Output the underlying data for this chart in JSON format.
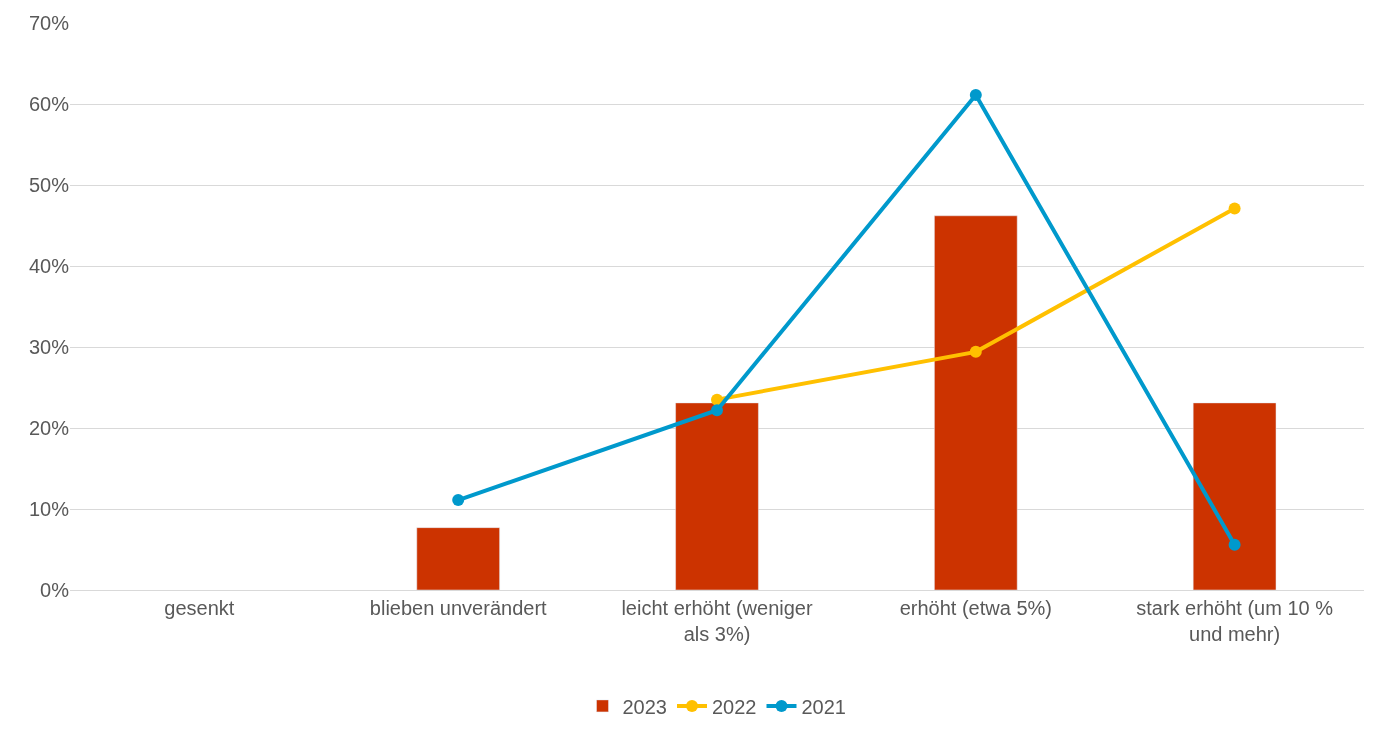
{
  "chart_data": {
    "type": "bar",
    "categories": [
      "gesenkt",
      "blieben unverändert",
      "leicht erhöht (weniger als 3%)",
      "erhöht (etwa 5%)",
      "stark erhöht (um 10 % und mehr)"
    ],
    "series": [
      {
        "name": "2023",
        "color": "#cc3300",
        "values": [
          null,
          7.7,
          23.1,
          46.2,
          23.1
        ]
      },
      {
        "name": "2022",
        "type": "line",
        "color": "#ffc000",
        "values": [
          null,
          null,
          23.5,
          29.4,
          47.1
        ]
      },
      {
        "name": "2021",
        "type": "line",
        "color": "#0099cc",
        "values": [
          null,
          11.1,
          22.2,
          61.1,
          5.6
        ]
      }
    ],
    "ylim": [
      0,
      70
    ],
    "yticks": [
      {
        "value": 0,
        "label": "0%"
      },
      {
        "value": 10,
        "label": "10%"
      },
      {
        "value": 20,
        "label": "20%"
      },
      {
        "value": 30,
        "label": "30%"
      },
      {
        "value": 40,
        "label": "40%"
      },
      {
        "value": 50,
        "label": "50%"
      },
      {
        "value": 60,
        "label": "60%"
      },
      {
        "value": 70,
        "label": "70%"
      }
    ],
    "grid": "y",
    "legend": "bottom",
    "marker": "circle",
    "line_style": "solid"
  }
}
